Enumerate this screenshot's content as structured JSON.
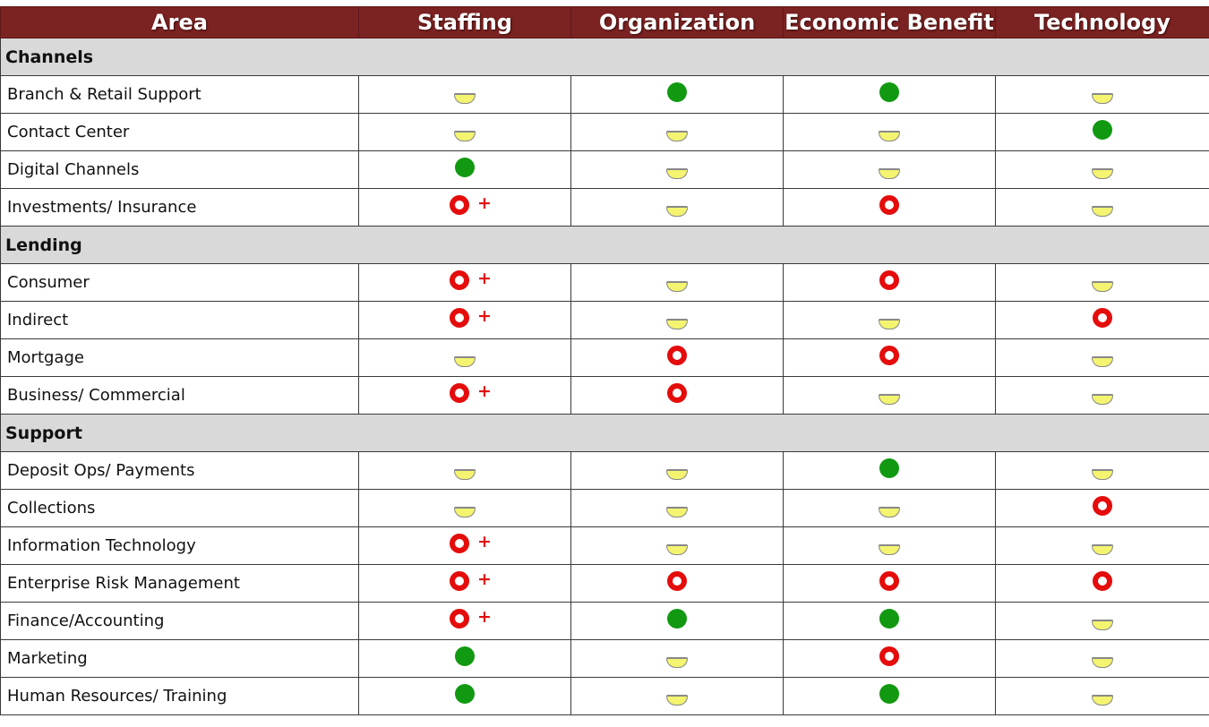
{
  "colors": {
    "header_bg": "#7b2222",
    "section_bg": "#d9d9d9",
    "green": "#119911",
    "red": "#e50c0c",
    "yellow": "#f4f470"
  },
  "legend_icons": {
    "green": "green-dot-icon",
    "yellow": "yellow-half-circle-icon",
    "red": "red-ring-icon",
    "red_plus": "red-ring-plus-icon"
  },
  "header": {
    "area": "Area",
    "staffing": "Staffing",
    "organization": "Organization",
    "economic_benefit": "Economic Benefit",
    "technology": "Technology"
  },
  "sections": [
    {
      "title": "Channels",
      "rows": [
        {
          "label": "Branch & Retail Support",
          "values": [
            "yellow",
            "green",
            "green",
            "yellow"
          ]
        },
        {
          "label": "Contact Center",
          "values": [
            "yellow",
            "yellow",
            "yellow",
            "green"
          ]
        },
        {
          "label": "Digital Channels",
          "values": [
            "green",
            "yellow",
            "yellow",
            "yellow"
          ]
        },
        {
          "label": "Investments/ Insurance",
          "values": [
            "red_plus",
            "yellow",
            "red",
            "yellow"
          ]
        }
      ]
    },
    {
      "title": "Lending",
      "rows": [
        {
          "label": "Consumer",
          "values": [
            "red_plus",
            "yellow",
            "red",
            "yellow"
          ]
        },
        {
          "label": "Indirect",
          "values": [
            "red_plus",
            "yellow",
            "yellow",
            "red"
          ]
        },
        {
          "label": "Mortgage",
          "values": [
            "yellow",
            "red",
            "red",
            "yellow"
          ]
        },
        {
          "label": "Business/ Commercial",
          "values": [
            "red_plus",
            "red",
            "yellow",
            "yellow"
          ]
        }
      ]
    },
    {
      "title": "Support",
      "rows": [
        {
          "label": "Deposit Ops/ Payments",
          "values": [
            "yellow",
            "yellow",
            "green",
            "yellow"
          ]
        },
        {
          "label": "Collections",
          "values": [
            "yellow",
            "yellow",
            "yellow",
            "red"
          ]
        },
        {
          "label": "Information Technology",
          "values": [
            "red_plus",
            "yellow",
            "yellow",
            "yellow"
          ]
        },
        {
          "label": "Enterprise Risk Management",
          "values": [
            "red_plus",
            "red",
            "red",
            "red"
          ]
        },
        {
          "label": "Finance/Accounting",
          "values": [
            "red_plus",
            "green",
            "green",
            "yellow"
          ]
        },
        {
          "label": "Marketing",
          "values": [
            "green",
            "yellow",
            "red",
            "yellow"
          ]
        },
        {
          "label": "Human Resources/ Training",
          "values": [
            "green",
            "yellow",
            "green",
            "yellow"
          ]
        }
      ]
    }
  ]
}
